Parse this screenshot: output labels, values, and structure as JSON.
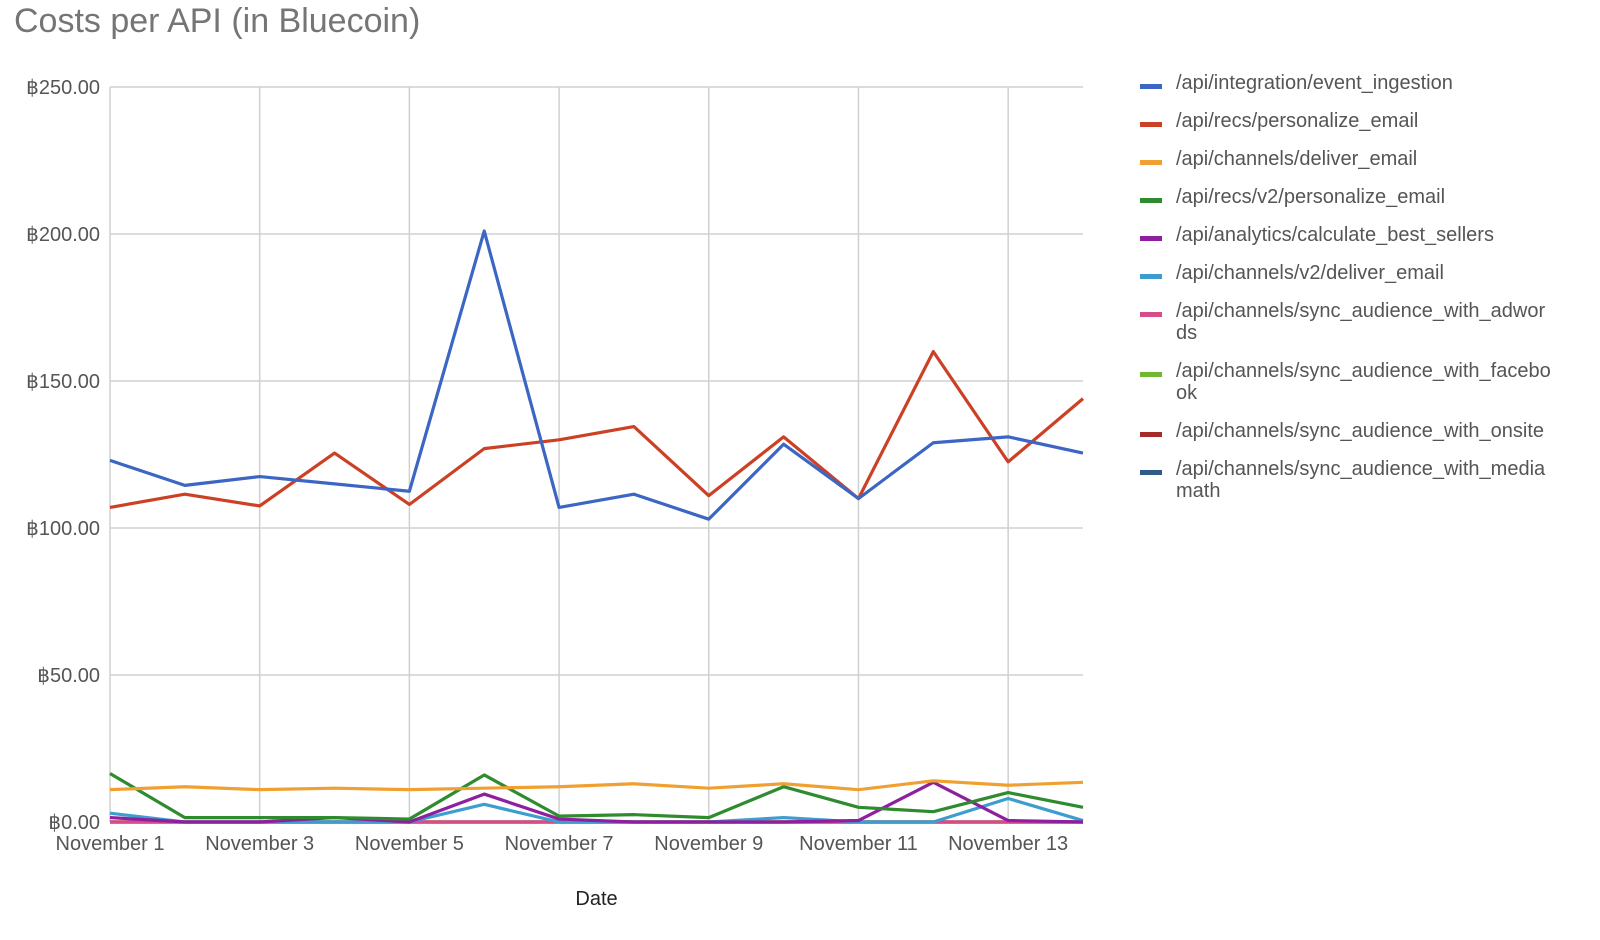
{
  "chart_data": {
    "type": "line",
    "title": "Costs per API (in Bluecoin)",
    "xlabel": "Date",
    "ylabel": "",
    "ylim": [
      0,
      250
    ],
    "y_ticks": [
      "฿0.00",
      "฿50.00",
      "฿100.00",
      "฿150.00",
      "฿200.00",
      "฿250.00"
    ],
    "y_tick_values": [
      0,
      50,
      100,
      150,
      200,
      250
    ],
    "categories": [
      "November 1",
      "November 2",
      "November 3",
      "November 4",
      "November 5",
      "November 6",
      "November 7",
      "November 8",
      "November 9",
      "November 10",
      "November 11",
      "November 12",
      "November 13",
      "November 14"
    ],
    "x_tick_labels": [
      "November 1",
      "",
      "November 3",
      "",
      "November 5",
      "",
      "November 7",
      "",
      "November 9",
      "",
      "November 11",
      "",
      "November 13",
      ""
    ],
    "grid": true,
    "legend_position": "right",
    "series": [
      {
        "name": "/api/integration/event_ingestion",
        "color": "#3c66c4",
        "values": [
          123,
          114.5,
          117.5,
          115,
          112.5,
          201,
          107,
          111.5,
          103,
          128.5,
          110,
          129,
          131,
          125.5
        ]
      },
      {
        "name": "/api/recs/personalize_email",
        "color": "#cc4125",
        "values": [
          107,
          111.5,
          107.5,
          125.5,
          108,
          127,
          130,
          134.5,
          111,
          131,
          110,
          160,
          122.5,
          144
        ]
      },
      {
        "name": "/api/channels/deliver_email",
        "color": "#f0a030",
        "values": [
          11,
          12,
          11,
          11.5,
          11,
          11.5,
          12,
          13,
          11.5,
          13,
          11,
          14,
          12.5,
          13.5
        ]
      },
      {
        "name": "/api/recs/v2/personalize_email",
        "color": "#2e8b2e",
        "values": [
          16.5,
          1.5,
          1.5,
          1.5,
          1,
          16,
          2,
          2.5,
          1.5,
          12,
          5,
          3.5,
          10,
          5
        ]
      },
      {
        "name": "/api/analytics/calculate_best_sellers",
        "color": "#8e1f9e",
        "values": [
          1.5,
          0,
          0,
          1.5,
          0,
          9.5,
          1,
          0,
          0,
          0,
          0.5,
          13.5,
          0.5,
          0
        ]
      },
      {
        "name": "/api/channels/v2/deliver_email",
        "color": "#3d9dcf",
        "values": [
          3,
          0,
          0,
          0,
          0,
          6,
          0,
          0,
          0,
          1.5,
          0,
          0,
          8,
          0.5
        ]
      },
      {
        "name": "/api/channels/sync_audience_with_adwords",
        "color": "#d94c8a",
        "values": [
          0,
          0,
          0,
          0,
          0,
          0,
          0,
          0,
          0,
          0,
          0,
          0,
          0,
          0
        ]
      },
      {
        "name": "/api/channels/sync_audience_with_facebook",
        "color": "#72b82e",
        "values": [
          0,
          0,
          0,
          0,
          0,
          0,
          0,
          0,
          0,
          0,
          0,
          0,
          0,
          0
        ]
      },
      {
        "name": "/api/channels/sync_audience_with_onsite",
        "color": "#a52a2a",
        "values": [
          0,
          0,
          0,
          0,
          0,
          0,
          0,
          0,
          0,
          0,
          0,
          0,
          0,
          0
        ]
      },
      {
        "name": "/api/channels/sync_audience_with_mediamath",
        "color": "#2f5b8a",
        "values": [
          0,
          0,
          0,
          0,
          0,
          0,
          0,
          0,
          0,
          0,
          0,
          0,
          0,
          0
        ]
      }
    ]
  }
}
